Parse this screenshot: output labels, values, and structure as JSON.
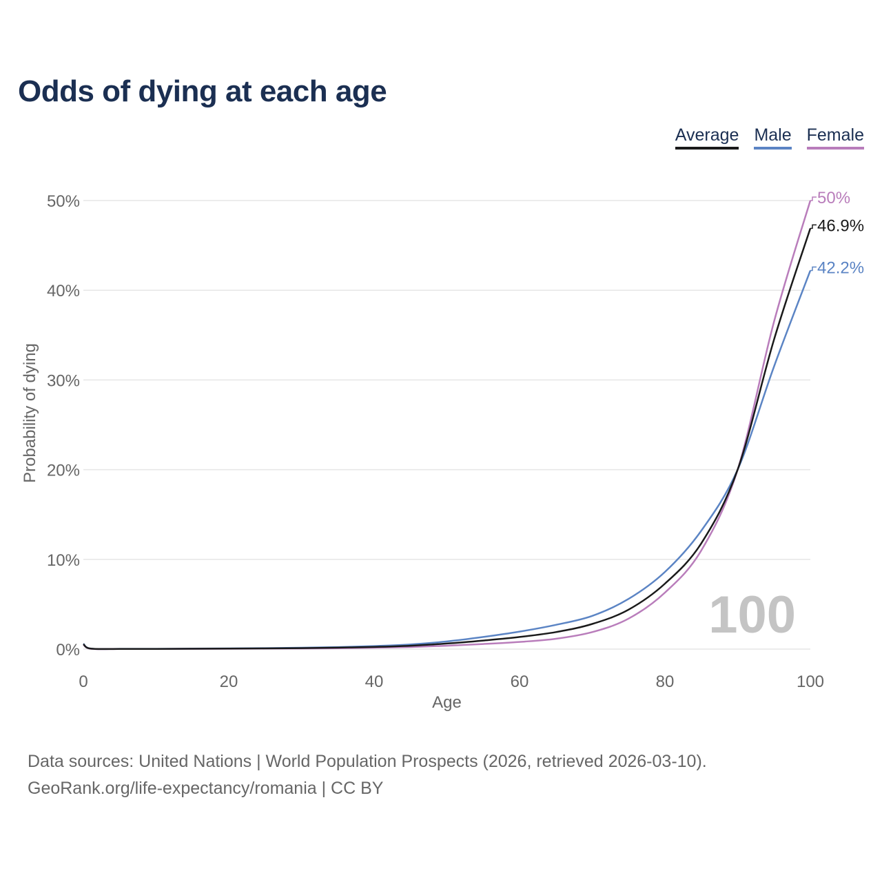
{
  "title": "Odds of dying at each age",
  "legend": [
    {
      "label": "Average",
      "color": "#1a1a1a"
    },
    {
      "label": "Male",
      "color": "#5b84c4"
    },
    {
      "label": "Female",
      "color": "#b97dbb"
    }
  ],
  "watermark": "100",
  "footer": {
    "source": "Data sources: United Nations | World Population Prospects (2026, retrieved 2026-03-10).",
    "credit": "GeoRank.org/life-expectancy/romania | CC BY"
  },
  "chart_data": {
    "type": "line",
    "title": "Odds of dying at each age",
    "xlabel": "Age",
    "ylabel": "Probability of dying",
    "xlim": [
      0,
      100
    ],
    "ylim": [
      0,
      50
    ],
    "xticks": [
      "0",
      "20",
      "40",
      "60",
      "80",
      "100"
    ],
    "xtick_values": [
      0,
      20,
      40,
      60,
      80,
      100
    ],
    "yticks": [
      "0%",
      "10%",
      "20%",
      "30%",
      "40%",
      "50%"
    ],
    "ytick_values": [
      0,
      10,
      20,
      30,
      40,
      50
    ],
    "grid": true,
    "x": [
      0,
      1,
      5,
      10,
      15,
      20,
      25,
      30,
      35,
      40,
      45,
      50,
      55,
      60,
      65,
      70,
      75,
      80,
      85,
      90,
      95,
      100
    ],
    "series": [
      {
        "name": "Average",
        "color": "#1a1a1a",
        "end_label": "46.9%",
        "values": [
          0.55,
          0.05,
          0.02,
          0.02,
          0.04,
          0.06,
          0.08,
          0.11,
          0.16,
          0.24,
          0.38,
          0.62,
          0.95,
          1.35,
          1.9,
          2.8,
          4.4,
          7.3,
          11.8,
          20.0,
          34.5,
          46.9
        ]
      },
      {
        "name": "Male",
        "color": "#5b84c4",
        "end_label": "42.2%",
        "values": [
          0.6,
          0.05,
          0.03,
          0.03,
          0.05,
          0.08,
          0.11,
          0.15,
          0.22,
          0.34,
          0.52,
          0.85,
          1.35,
          1.95,
          2.7,
          3.7,
          5.6,
          8.6,
          13.2,
          20.0,
          31.5,
          42.2
        ]
      },
      {
        "name": "Female",
        "color": "#b97dbb",
        "end_label": "50%",
        "values": [
          0.5,
          0.04,
          0.02,
          0.02,
          0.03,
          0.04,
          0.05,
          0.07,
          0.1,
          0.15,
          0.23,
          0.38,
          0.57,
          0.8,
          1.15,
          1.9,
          3.4,
          6.3,
          11.0,
          20.0,
          36.5,
          50.0
        ]
      }
    ]
  }
}
